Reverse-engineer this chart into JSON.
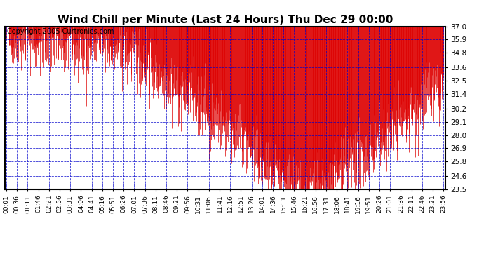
{
  "title": "Wind Chill per Minute (Last 24 Hours) Thu Dec 29 00:00",
  "copyright": "Copyright 2005 Curtronics.com",
  "yticks": [
    23.5,
    24.6,
    25.8,
    26.9,
    28.0,
    29.1,
    30.2,
    31.4,
    32.5,
    33.6,
    34.8,
    35.9,
    37.0
  ],
  "ymin": 23.5,
  "ymax": 37.0,
  "xtick_labels": [
    "00:01",
    "00:36",
    "01:11",
    "01:46",
    "02:21",
    "02:56",
    "03:31",
    "04:06",
    "04:41",
    "05:16",
    "05:51",
    "06:26",
    "07:01",
    "07:36",
    "08:11",
    "08:46",
    "09:21",
    "09:56",
    "10:31",
    "11:06",
    "11:41",
    "12:16",
    "12:51",
    "13:26",
    "14:01",
    "14:36",
    "15:11",
    "15:46",
    "16:21",
    "16:56",
    "17:31",
    "18:06",
    "18:41",
    "19:16",
    "19:51",
    "20:26",
    "21:01",
    "21:36",
    "22:11",
    "22:46",
    "23:21",
    "23:56"
  ],
  "line_color": "#dd0000",
  "bg_color": "#ffffff",
  "grid_color": "#0000cc",
  "title_fontsize": 11,
  "copyright_fontsize": 7
}
